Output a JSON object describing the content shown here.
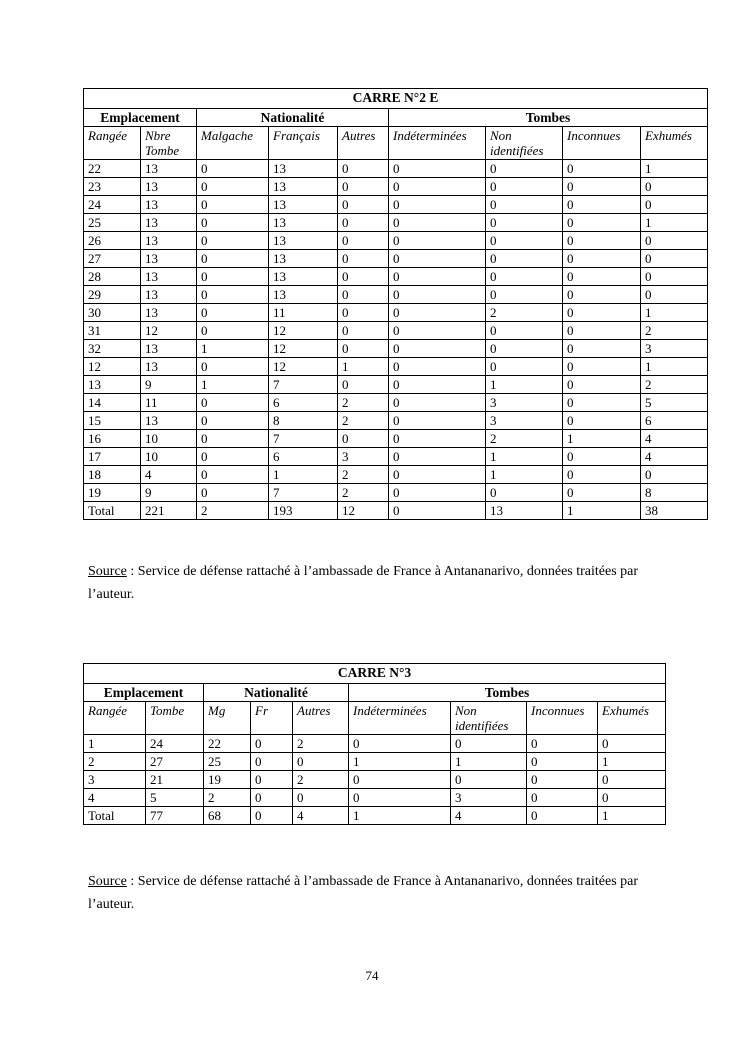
{
  "tables": [
    {
      "title": "CARRE N°2 E",
      "groups": [
        {
          "label": "Emplacement",
          "span": 2
        },
        {
          "label": "Nationalité",
          "span": 3
        },
        {
          "label": "Tombes",
          "span": 4
        }
      ],
      "columns": [
        "Rangée",
        "Nbre Tombe",
        "Malgache",
        "Français",
        "Autres",
        "Indéterminées",
        "Non identifiées",
        "Inconnues",
        "Exhumés"
      ],
      "rows": [
        [
          "22",
          "13",
          "0",
          "13",
          "0",
          "0",
          "0",
          "0",
          "1"
        ],
        [
          "23",
          "13",
          "0",
          "13",
          "0",
          "0",
          "0",
          "0",
          "0"
        ],
        [
          "24",
          "13",
          "0",
          "13",
          "0",
          "0",
          "0",
          "0",
          "0"
        ],
        [
          "25",
          "13",
          "0",
          "13",
          "0",
          "0",
          "0",
          "0",
          "1"
        ],
        [
          "26",
          "13",
          "0",
          "13",
          "0",
          "0",
          "0",
          "0",
          "0"
        ],
        [
          "27",
          "13",
          "0",
          "13",
          "0",
          "0",
          "0",
          "0",
          "0"
        ],
        [
          "28",
          "13",
          "0",
          "13",
          "0",
          "0",
          "0",
          "0",
          "0"
        ],
        [
          "29",
          "13",
          "0",
          "13",
          "0",
          "0",
          "0",
          "0",
          "0"
        ],
        [
          "30",
          "13",
          "0",
          "11",
          "0",
          "0",
          "2",
          "0",
          "1"
        ],
        [
          "31",
          "12",
          "0",
          "12",
          "0",
          "0",
          "0",
          "0",
          "2"
        ],
        [
          "32",
          "13",
          "1",
          "12",
          "0",
          "0",
          "0",
          "0",
          "3"
        ],
        [
          "12",
          "13",
          "0",
          "12",
          "1",
          "0",
          "0",
          "0",
          "1"
        ],
        [
          "13",
          "9",
          "1",
          "7",
          "0",
          "0",
          "1",
          "0",
          "2"
        ],
        [
          "14",
          "11",
          "0",
          "6",
          "2",
          "0",
          "3",
          "0",
          "5"
        ],
        [
          "15",
          "13",
          "0",
          "8",
          "2",
          "0",
          "3",
          "0",
          "6"
        ],
        [
          "16",
          "10",
          "0",
          "7",
          "0",
          "0",
          "2",
          "1",
          "4"
        ],
        [
          "17",
          "10",
          "0",
          "6",
          "3",
          "0",
          "1",
          "0",
          "4"
        ],
        [
          "18",
          "4",
          "0",
          "1",
          "2",
          "0",
          "1",
          "0",
          "0"
        ],
        [
          "19",
          "9",
          "0",
          "7",
          "2",
          "0",
          "0",
          "0",
          "8"
        ],
        [
          "Total",
          "221",
          "2",
          "193",
          "12",
          "0",
          "13",
          "1",
          "38"
        ]
      ]
    },
    {
      "title": "CARRE N°3",
      "groups": [
        {
          "label": "Emplacement",
          "span": 2
        },
        {
          "label": "Nationalité",
          "span": 3
        },
        {
          "label": "Tombes",
          "span": 4
        }
      ],
      "columns": [
        "Rangée",
        "Tombe",
        "Mg",
        "Fr",
        "Autres",
        "Indéterminées",
        "Non identifiées",
        "Inconnues",
        "Exhumés"
      ],
      "rows": [
        [
          "1",
          "24",
          "22",
          "0",
          "2",
          "0",
          "0",
          "0",
          "0"
        ],
        [
          "2",
          "27",
          "25",
          "0",
          "0",
          "1",
          "1",
          "0",
          "1"
        ],
        [
          "3",
          "21",
          "19",
          "0",
          "2",
          "0",
          "0",
          "0",
          "0"
        ],
        [
          "4",
          "5",
          "2",
          "0",
          "0",
          "0",
          "3",
          "0",
          "0"
        ],
        [
          "Total",
          "77",
          "68",
          "0",
          "4",
          "1",
          "4",
          "0",
          "1"
        ]
      ]
    }
  ],
  "sources": [
    {
      "label": "Source",
      "text": " : Service de défense rattaché à l’ambassade de France à Antananarivo, données traitées par l’auteur."
    },
    {
      "label": "Source",
      "text": " : Service de défense rattaché à l’ambassade de France à Antananarivo, données traitées par l’auteur."
    }
  ],
  "page": {
    "number": "74"
  }
}
